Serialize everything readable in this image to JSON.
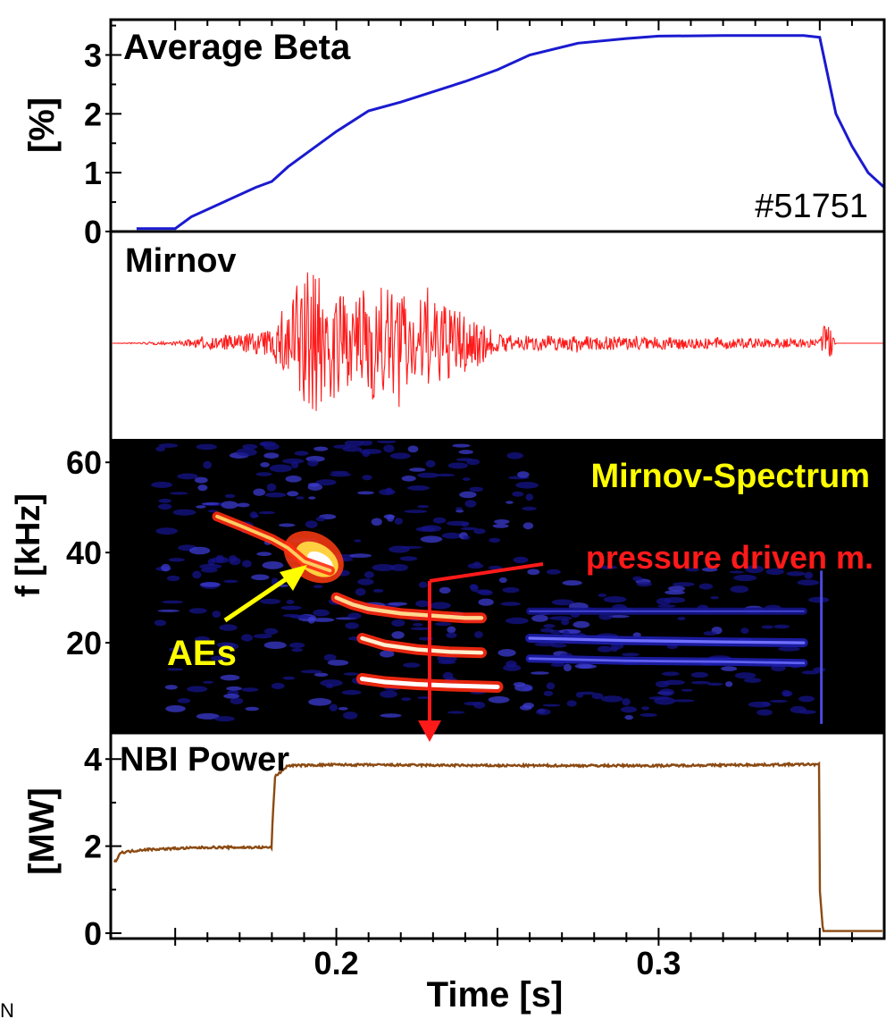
{
  "colors": {
    "beta": "#1a1ad0",
    "mirnov": "#ff1a1a",
    "nbi": "#8b4a12",
    "spectrum_bg": "#000000",
    "spectrum_title": "#ffff00",
    "pressure_label": "#ff1a1a",
    "aes_label": "#ffff00"
  },
  "time_axis": {
    "label": "Time [s]",
    "range": [
      0.13,
      0.37
    ],
    "tick_labels": [
      "0.2",
      "0.3"
    ]
  },
  "panels": {
    "beta": {
      "title": "Average Beta",
      "ylabel": "[%]",
      "shot": "#51751",
      "tick_labels": [
        "0",
        "1",
        "2",
        "3"
      ]
    },
    "mirnov": {
      "title": "Mirnov"
    },
    "spectrum": {
      "title": "Mirnov-Spectrum",
      "ylabel": "f [kHz]",
      "tick_labels": [
        "20",
        "40",
        "60"
      ],
      "annotation_pressure": "pressure driven m.",
      "annotation_aes": "AEs"
    },
    "nbi": {
      "title": "NBI Power",
      "ylabel": "[MW]",
      "tick_labels": [
        "0",
        "2",
        "4"
      ]
    }
  },
  "footer_fragment": "N",
  "chart_data": [
    {
      "type": "line",
      "title": "Average Beta",
      "ylabel": "[%]",
      "xlabel": "Time [s]",
      "xlim": [
        0.13,
        0.37
      ],
      "ylim": [
        0,
        3.6
      ],
      "series": [
        {
          "x": [
            0.138,
            0.15,
            0.155,
            0.165,
            0.175,
            0.18,
            0.185,
            0.2,
            0.21,
            0.22,
            0.24,
            0.25,
            0.26,
            0.275,
            0.29,
            0.3,
            0.32,
            0.345,
            0.35,
            0.355,
            0.36,
            0.365,
            0.37
          ],
          "y": [
            0.05,
            0.05,
            0.25,
            0.5,
            0.75,
            0.85,
            1.1,
            1.7,
            2.05,
            2.2,
            2.55,
            2.75,
            3.0,
            3.2,
            3.28,
            3.32,
            3.33,
            3.33,
            3.3,
            2.0,
            1.45,
            1.0,
            0.75
          ]
        }
      ]
    },
    {
      "type": "line",
      "title": "Mirnov",
      "xlabel": "Time [s]",
      "xlim": [
        0.13,
        0.37
      ],
      "series": [
        {
          "x": [
            0.13,
            0.15,
            0.16,
            0.18,
            0.185,
            0.19,
            0.2,
            0.205,
            0.21,
            0.22,
            0.23,
            0.24,
            0.25,
            0.26,
            0.3,
            0.34,
            0.35,
            0.352,
            0.355,
            0.37
          ],
          "y": [
            0.0,
            0.02,
            0.06,
            0.14,
            0.5,
            0.85,
            0.6,
            0.4,
            0.65,
            0.55,
            0.45,
            0.35,
            0.1,
            0.08,
            0.07,
            0.05,
            0.04,
            0.3,
            0.0,
            0.0
          ]
        }
      ]
    },
    {
      "type": "heatmap",
      "title": "Mirnov-Spectrum",
      "ylabel": "f [kHz]",
      "xlabel": "Time [s]",
      "xlim": [
        0.13,
        0.37
      ],
      "ylim": [
        0,
        65
      ],
      "series": [
        {
          "name": "AEs",
          "x": [
            0.163,
            0.17,
            0.18,
            0.185,
            0.19,
            0.198
          ],
          "y": [
            48,
            46,
            43,
            41,
            38,
            36
          ]
        },
        {
          "x": [
            0.2,
            0.205,
            0.21,
            0.22,
            0.23,
            0.24,
            0.245
          ],
          "y": [
            30,
            28.5,
            27.5,
            26.5,
            26,
            25.5,
            25.5
          ]
        },
        {
          "x": [
            0.208,
            0.215,
            0.225,
            0.235,
            0.245
          ],
          "y": [
            21,
            19.5,
            18.5,
            18,
            17.8
          ]
        },
        {
          "x": [
            0.208,
            0.215,
            0.225,
            0.235,
            0.245,
            0.25
          ],
          "y": [
            12,
            11.3,
            10.8,
            10.5,
            10.3,
            10.2
          ]
        },
        {
          "x": [
            0.26,
            0.29,
            0.32,
            0.345
          ],
          "y": [
            21,
            20.5,
            20.2,
            20
          ]
        },
        {
          "x": [
            0.26,
            0.29,
            0.32,
            0.345
          ],
          "y": [
            16.5,
            16,
            15.8,
            15.5
          ]
        },
        {
          "x": [
            0.26,
            0.29,
            0.32,
            0.345
          ],
          "y": [
            27,
            27,
            27,
            27
          ]
        }
      ]
    },
    {
      "type": "line",
      "title": "NBI Power",
      "ylabel": "[MW]",
      "xlabel": "Time [s]",
      "xlim": [
        0.13,
        0.37
      ],
      "ylim": [
        0,
        4.6
      ],
      "series": [
        {
          "x": [
            0.13,
            0.131,
            0.133,
            0.14,
            0.16,
            0.18,
            0.18,
            0.181,
            0.185,
            0.2,
            0.25,
            0.3,
            0.35,
            0.35,
            0.351,
            0.37
          ],
          "y": [
            1.0,
            1.6,
            1.85,
            1.92,
            1.97,
            1.97,
            2.3,
            3.6,
            3.85,
            3.87,
            3.85,
            3.85,
            3.88,
            1.0,
            0.05,
            0.05
          ]
        }
      ]
    }
  ]
}
